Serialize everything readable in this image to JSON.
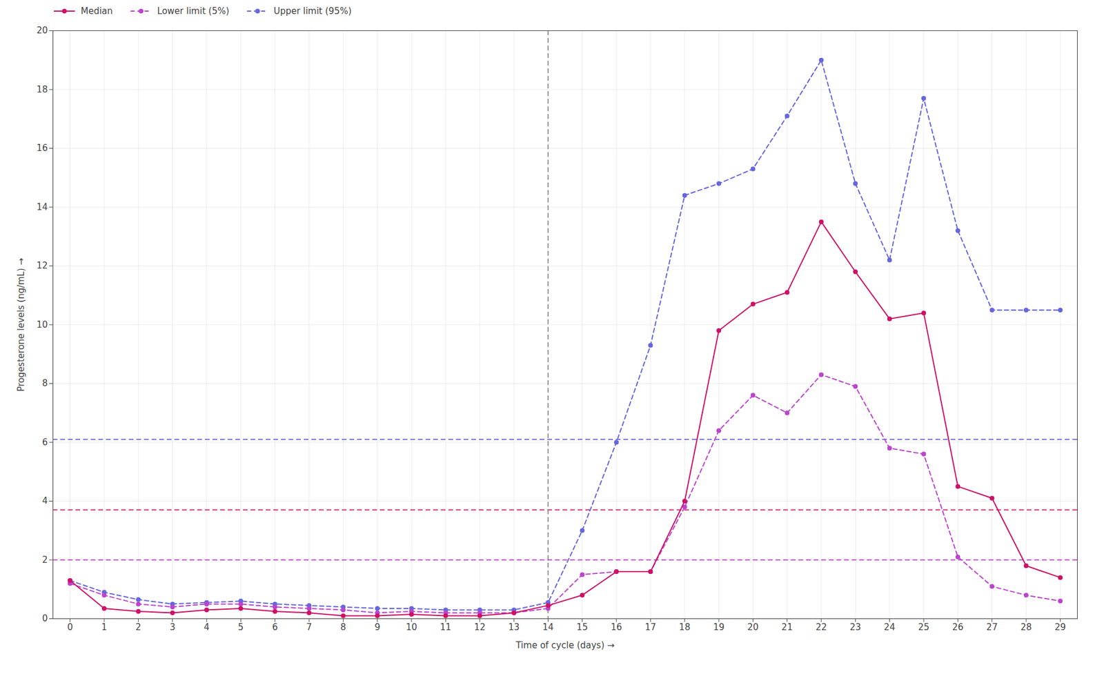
{
  "chart_data": {
    "type": "line",
    "xlabel": "Time of cycle (days)",
    "ylabel": "Progesterone levels (ng/mL)",
    "x": [
      0,
      1,
      2,
      3,
      4,
      5,
      6,
      7,
      8,
      9,
      10,
      11,
      12,
      13,
      14,
      15,
      16,
      17,
      18,
      19,
      20,
      21,
      22,
      23,
      24,
      25,
      26,
      27,
      28,
      29
    ],
    "series": [
      {
        "name": "Median",
        "color": "#CC1166",
        "line_style": "solid",
        "marker": "circle",
        "values": [
          1.3,
          0.35,
          0.25,
          0.2,
          0.3,
          0.35,
          0.25,
          0.2,
          0.1,
          0.1,
          0.15,
          0.1,
          0.1,
          0.2,
          0.45,
          0.8,
          1.6,
          1.6,
          4.0,
          9.8,
          10.7,
          11.1,
          13.5,
          11.8,
          10.2,
          10.4,
          4.5,
          4.1,
          1.8,
          1.4
        ]
      },
      {
        "name": "Lower limit (5%)",
        "color": "#BB44CC",
        "line_style": "dashed",
        "marker": "circle",
        "values": [
          1.2,
          0.8,
          0.5,
          0.4,
          0.5,
          0.5,
          0.4,
          0.35,
          0.3,
          0.2,
          0.25,
          0.2,
          0.2,
          0.2,
          0.35,
          1.5,
          1.6,
          1.6,
          3.8,
          6.4,
          7.6,
          7.0,
          8.3,
          7.9,
          5.8,
          5.6,
          2.1,
          1.1,
          0.8,
          0.6
        ]
      },
      {
        "name": "Upper limit (95%)",
        "color": "#6666DD",
        "line_style": "dashed",
        "marker": "circle",
        "values": [
          1.3,
          0.9,
          0.65,
          0.5,
          0.55,
          0.6,
          0.5,
          0.45,
          0.4,
          0.35,
          0.35,
          0.3,
          0.3,
          0.3,
          0.55,
          3.0,
          6.0,
          9.3,
          14.4,
          14.8,
          15.3,
          17.1,
          19.0,
          14.8,
          12.2,
          17.7,
          13.2,
          10.5,
          10.5,
          10.5
        ]
      }
    ],
    "hlines": [
      {
        "value": 6.1,
        "color": "#6666DD"
      },
      {
        "value": 3.7,
        "color": "#CC1166"
      },
      {
        "value": 2.0,
        "color": "#BB44CC"
      }
    ],
    "vline": {
      "value": 14,
      "color": "#888888"
    },
    "xlim": [
      -0.5,
      29.5
    ],
    "xticks": [
      0,
      1,
      2,
      3,
      4,
      5,
      6,
      7,
      8,
      9,
      10,
      11,
      12,
      13,
      14,
      15,
      16,
      17,
      18,
      19,
      20,
      21,
      22,
      23,
      24,
      25,
      26,
      27,
      28,
      29
    ],
    "ylim": [
      0,
      20
    ],
    "yticks": [
      0,
      2,
      4,
      6,
      8,
      10,
      12,
      14,
      16,
      18,
      20
    ],
    "grid": true,
    "legend": "upper left"
  }
}
